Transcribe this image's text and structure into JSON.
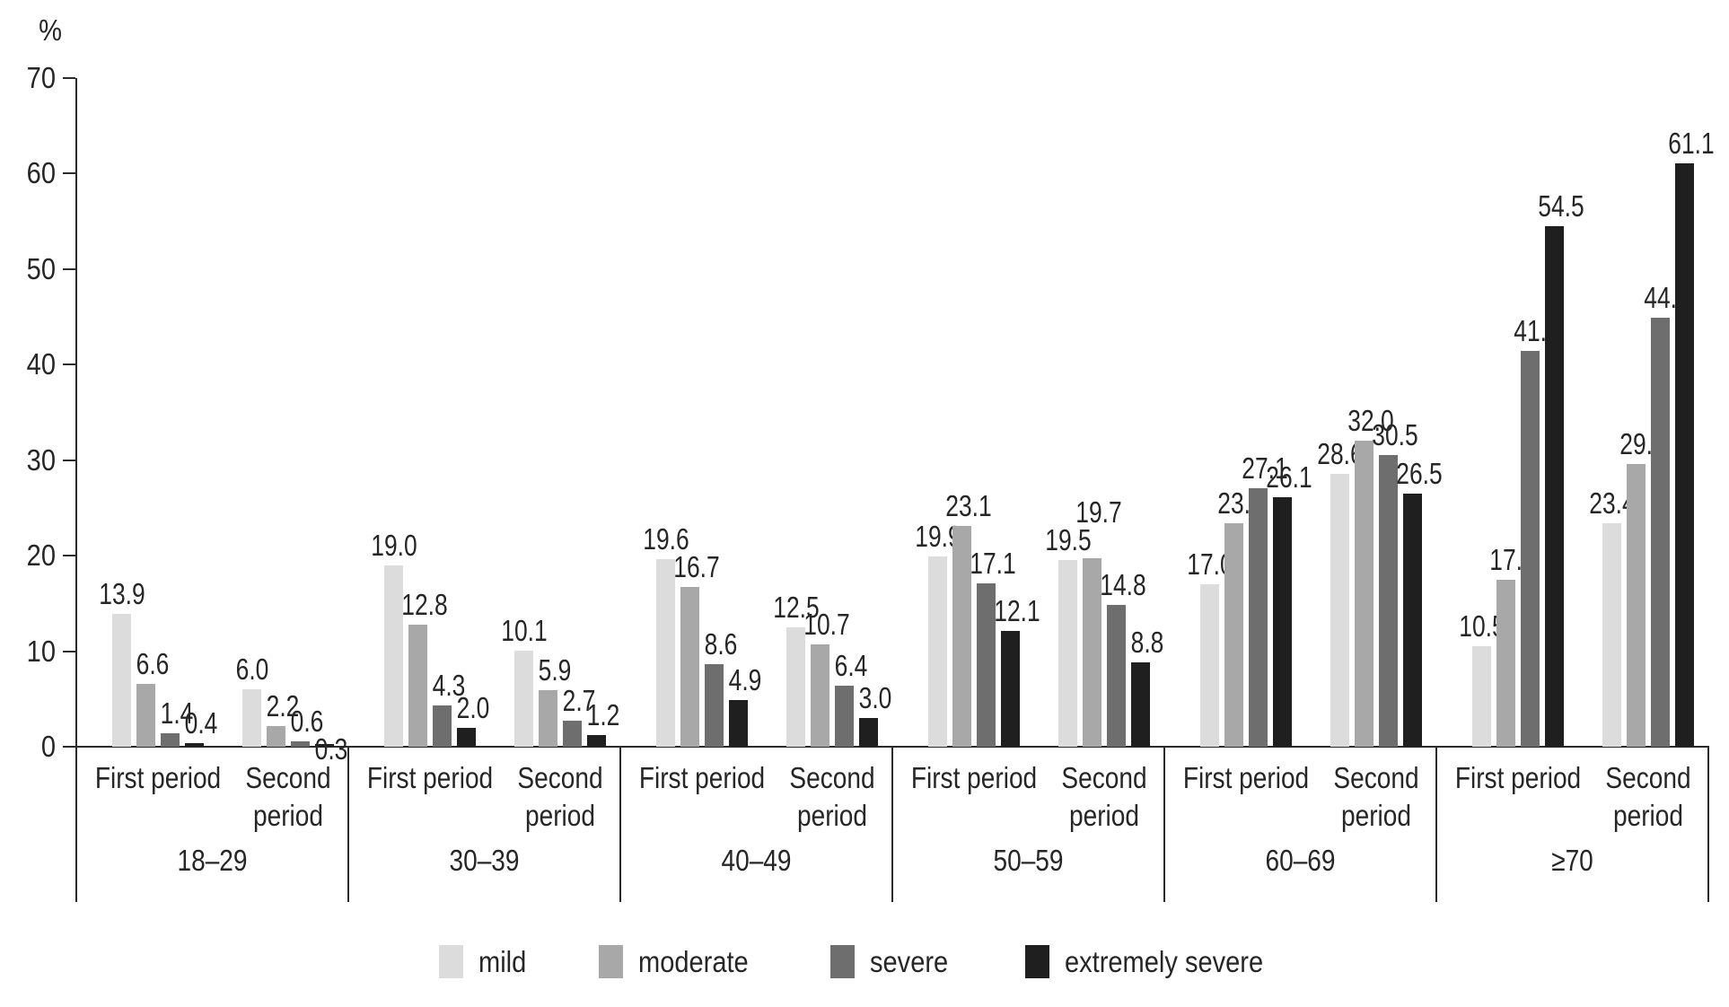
{
  "chart_data": {
    "type": "bar",
    "title": "",
    "ylabel": "%",
    "ylim": [
      0,
      70
    ],
    "yticks": [
      "0",
      "10",
      "20",
      "30",
      "40",
      "50",
      "60",
      "70"
    ],
    "grid": false,
    "legend_position": "bottom-center",
    "series": [
      "mild",
      "moderate",
      "severe",
      "extremely severe"
    ],
    "colors": [
      "#dcdcdc",
      "#a8a8a8",
      "#6e6e6e",
      "#1f1f1f"
    ],
    "age_groups": [
      {
        "label": "18–29",
        "periods": [
          {
            "label": "First period",
            "values": [
              "13.9",
              "6.6",
              "1.4",
              "0.4"
            ]
          },
          {
            "label": "Second period",
            "values": [
              "6.0",
              "2.2",
              "0.6",
              "0.3"
            ]
          }
        ]
      },
      {
        "label": "30–39",
        "periods": [
          {
            "label": "First period",
            "values": [
              "19.0",
              "12.8",
              "4.3",
              "2.0"
            ]
          },
          {
            "label": "Second period",
            "values": [
              "10.1",
              "5.9",
              "2.7",
              "1.2"
            ]
          }
        ]
      },
      {
        "label": "40–49",
        "periods": [
          {
            "label": "First period",
            "values": [
              "19.6",
              "16.7",
              "8.6",
              "4.9"
            ]
          },
          {
            "label": "Second period",
            "values": [
              "12.5",
              "10.7",
              "6.4",
              "3.0"
            ]
          }
        ]
      },
      {
        "label": "50–59",
        "periods": [
          {
            "label": "First period",
            "values": [
              "19.9",
              "23.1",
              "17.1",
              "12.1"
            ]
          },
          {
            "label": "Second period",
            "values": [
              "19.5",
              "19.7",
              "14.8",
              "8.8"
            ]
          }
        ]
      },
      {
        "label": "60–69",
        "periods": [
          {
            "label": "First period",
            "values": [
              "17.0",
              "23.4",
              "27.1",
              "26.1"
            ]
          },
          {
            "label": "Second period",
            "values": [
              "28.6",
              "32.0",
              "30.5",
              "26.5"
            ]
          }
        ]
      },
      {
        "label": "≥70",
        "periods": [
          {
            "label": "First period",
            "values": [
              "10.5",
              "17.5",
              "41.4",
              "54.5"
            ]
          },
          {
            "label": "Second period",
            "values": [
              "23.4",
              "29.6",
              "44.9",
              "61.1"
            ]
          }
        ]
      }
    ]
  }
}
